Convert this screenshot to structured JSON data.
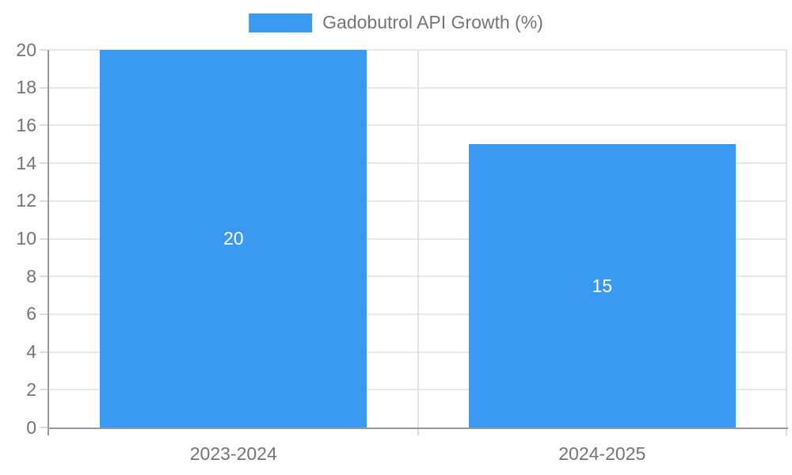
{
  "chart_data": {
    "type": "bar",
    "legend": {
      "label": "Gadobutrol API Growth (%)",
      "position": "top"
    },
    "categories": [
      "2023-2024",
      "2024-2025"
    ],
    "series": [
      {
        "name": "Gadobutrol API Growth (%)",
        "values": [
          20,
          15
        ]
      }
    ],
    "value_labels": [
      "20",
      "15"
    ],
    "xlabel": "",
    "ylabel": "",
    "ylim": [
      0,
      20
    ],
    "y_ticks": [
      0,
      2,
      4,
      6,
      8,
      10,
      12,
      14,
      16,
      18,
      20
    ],
    "grid": true,
    "colors": {
      "bar": "#3A99F0",
      "grid": "#E8E8E8",
      "grid_vertical": "#E2E2E2",
      "axis": "#999999",
      "tick_mark": "#DCDCDC",
      "tick_text": "#757575",
      "value_text": "#FFFFFF"
    }
  }
}
